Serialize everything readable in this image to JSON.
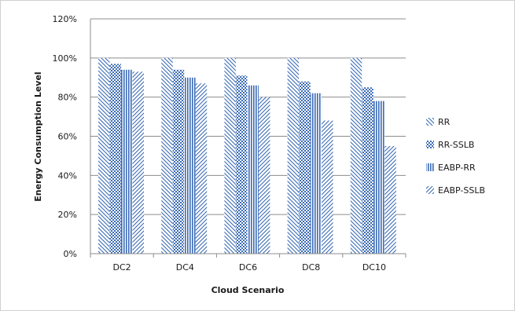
{
  "chart_data": {
    "type": "bar",
    "title": "",
    "xlabel": "Cloud Scenario",
    "ylabel": "Energy Consumption Level",
    "categories": [
      "DC2",
      "DC4",
      "DC6",
      "DC8",
      "DC10"
    ],
    "ylim": [
      0,
      120
    ],
    "yticks": [
      0,
      20,
      40,
      60,
      80,
      100,
      120
    ],
    "ytick_labels": [
      "0%",
      "20%",
      "40%",
      "60%",
      "80%",
      "100%",
      "120%"
    ],
    "grid": true,
    "legend_position": "right",
    "series": [
      {
        "name": "RR",
        "values": [
          100,
          100,
          100,
          100,
          100
        ],
        "pattern": "diag-left",
        "color": "#3b6bb5"
      },
      {
        "name": "RR-SSLB",
        "values": [
          97,
          94,
          91,
          88,
          85
        ],
        "pattern": "checker",
        "color": "#3b6bb5"
      },
      {
        "name": "EABP-RR",
        "values": [
          94,
          90,
          86,
          82,
          78
        ],
        "pattern": "vertical",
        "color": "#3b6bb5"
      },
      {
        "name": "EABP-SSLB",
        "values": [
          93,
          87,
          80,
          68,
          55
        ],
        "pattern": "diag-right",
        "color": "#3b6bb5"
      }
    ]
  }
}
